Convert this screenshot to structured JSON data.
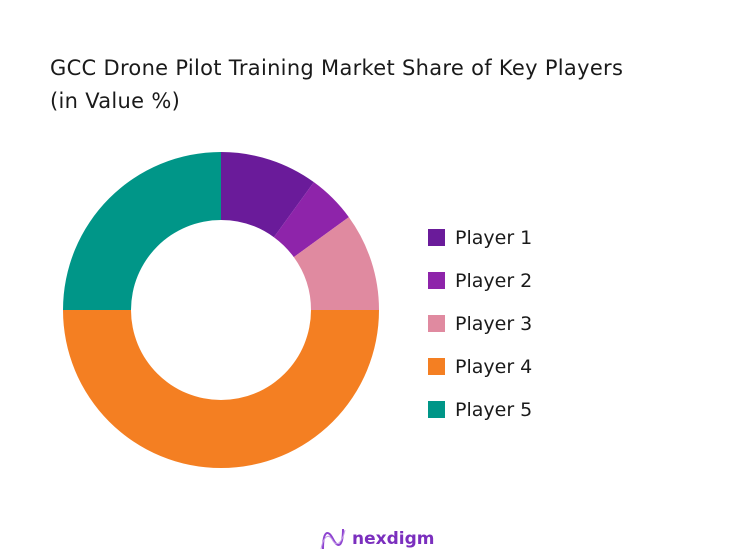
{
  "chart_data": {
    "type": "pie",
    "donut": true,
    "title": "GCC Drone Pilot Training Market Share of Key Players",
    "subtitle": "(in Value %)",
    "categories": [
      "Player 1",
      "Player 2",
      "Player 3",
      "Player 4",
      "Player 5"
    ],
    "values": [
      10,
      5,
      10,
      50,
      25
    ],
    "colors": [
      "#6a1b9a",
      "#8e24aa",
      "#e08aa0",
      "#f47f22",
      "#009688"
    ],
    "legend_position": "right"
  },
  "brand": {
    "logo_text": "nexdigm",
    "color": "#7b2fbe"
  }
}
